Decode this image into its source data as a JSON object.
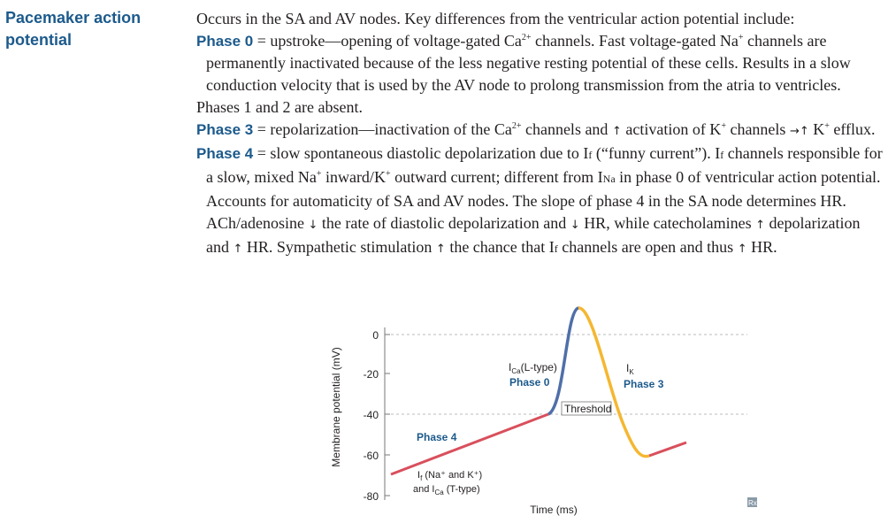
{
  "title": "Pacemaker action potential",
  "intro": "Occurs in the SA and AV nodes. Key differences from the ventricular action potential include:",
  "phase0": {
    "label": "Phase 0",
    "t1": " = upstroke—opening of voltage-gated Ca",
    "t2": " channels. Fast voltage-gated Na",
    "t3": " channels are permanently inactivated because of the less negative resting potential of these cells. Results in a slow conduction velocity that is used by the AV node to prolong transmission from the atria to ventricles."
  },
  "phase12": "Phases 1 and 2 are absent.",
  "phase3": {
    "label": "Phase 3",
    "t1": " = repolarization—inactivation of the Ca",
    "t2": " channels and ",
    "t3": " activation of K",
    "t4": " channels ",
    "t5": "K",
    "t6": " efflux."
  },
  "phase4": {
    "label": "Phase 4",
    "t1": " = slow spontaneous diastolic depolarization due to I",
    "t2": " (“funny current”). I",
    "t3": " channels responsible for a slow, mixed Na",
    "t4": " inward/K",
    "t5": " outward current; different from I",
    "t6": " in phase 0 of ventricular action potential. Accounts for automaticity of SA and AV nodes. The slope of phase 4 in the SA node determines HR. ACh/adenosine ",
    "t7": " the rate of diastolic depolarization and ",
    "t8": " HR, while catecholamines ",
    "t9": " depolarization and ",
    "t10": " HR. Sympathetic stimulation ",
    "t11": " the chance that I",
    "t12": " channels are open and thus ",
    "t13": " HR."
  },
  "sym": {
    "sup2plus": "2+",
    "supplus": "+",
    "sub_f": "f",
    "sub_na": "Na",
    "up": "↑",
    "down": "↓",
    "arrow": "→↑"
  },
  "figure": {
    "ylabel": "Membrane potential (mV)",
    "xlabel": "Time (ms)",
    "yticks": [
      "0",
      "-20",
      "-40",
      "-60",
      "-80"
    ],
    "label_ica_main": "I",
    "label_ica_sub": "Ca",
    "label_ica_rest": "(L-type)",
    "label_phase0": "Phase 0",
    "label_ik_main": "I",
    "label_ik_sub": "K",
    "label_phase3": "Phase 3",
    "label_threshold": "Threshold",
    "label_phase4": "Phase 4",
    "label_if_main": "I",
    "label_if_sub": "f",
    "label_if_rest": " (Na⁺ and K⁺)",
    "label_and": "and I",
    "label_and_sub": "Ca",
    "label_and_rest": " (T-type)",
    "badge": "Rx",
    "colors": {
      "phase4": "#d94f5c",
      "phase0": "#4f6fa8",
      "phase3": "#f5b731"
    }
  }
}
